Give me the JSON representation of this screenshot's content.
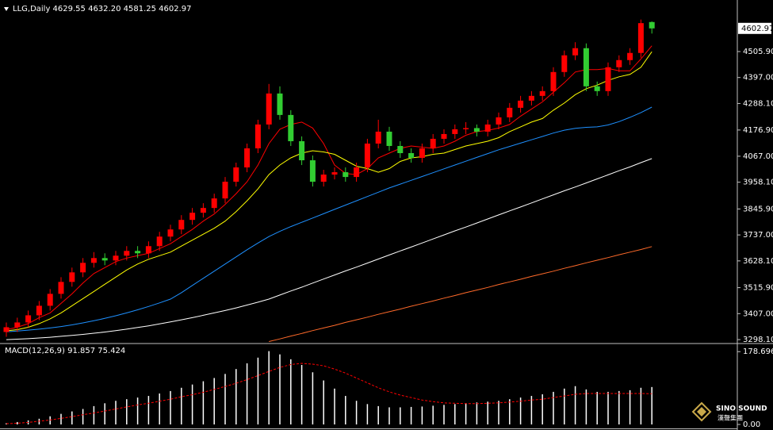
{
  "chart_data": [
    {
      "type": "candlestick",
      "title": "LLG,Daily 4629.55 4632.20 4581.25 4602.97",
      "up_color": "#ff0000",
      "down_color": "#32cd32",
      "open": [
        3330,
        3350,
        3370,
        3400,
        3440,
        3490,
        3540,
        3580,
        3620,
        3640,
        3630,
        3650,
        3670,
        3660,
        3690,
        3730,
        3760,
        3800,
        3830,
        3850,
        3890,
        3960,
        4020,
        4100,
        4200,
        4330,
        4240,
        4130,
        4050,
        3960,
        3990,
        4000,
        3980,
        4020,
        4120,
        4170,
        4110,
        4080,
        4060,
        4100,
        4140,
        4160,
        4180,
        4185,
        4170,
        4200,
        4230,
        4270,
        4300,
        4320,
        4340,
        4420,
        4490,
        4520,
        4360,
        4340,
        4440,
        4470,
        4500,
        4629.55
      ],
      "high": [
        3370,
        3390,
        3420,
        3460,
        3510,
        3560,
        3600,
        3640,
        3665,
        3660,
        3670,
        3690,
        3690,
        3710,
        3750,
        3780,
        3820,
        3850,
        3870,
        3910,
        3980,
        4040,
        4120,
        4220,
        4370,
        4360,
        4260,
        4150,
        4070,
        4010,
        4020,
        4020,
        4040,
        4140,
        4220,
        4190,
        4130,
        4100,
        4120,
        4160,
        4180,
        4200,
        4210,
        4200,
        4220,
        4250,
        4290,
        4320,
        4340,
        4360,
        4440,
        4510,
        4545,
        4540,
        4380,
        4460,
        4490,
        4520,
        4640,
        4632.2
      ],
      "low": [
        3310,
        3330,
        3350,
        3380,
        3420,
        3470,
        3520,
        3560,
        3600,
        3610,
        3610,
        3630,
        3640,
        3640,
        3670,
        3710,
        3740,
        3780,
        3810,
        3830,
        3870,
        3940,
        4000,
        4080,
        4180,
        4220,
        4110,
        4030,
        3940,
        3940,
        3970,
        3960,
        3960,
        4000,
        4100,
        4090,
        4060,
        4040,
        4040,
        4080,
        4120,
        4140,
        4160,
        4150,
        4150,
        4180,
        4210,
        4250,
        4280,
        4300,
        4320,
        4400,
        4470,
        4340,
        4320,
        4320,
        4420,
        4450,
        4480,
        4581.25
      ],
      "close": [
        3350,
        3370,
        3400,
        3440,
        3490,
        3540,
        3580,
        3620,
        3640,
        3630,
        3650,
        3670,
        3660,
        3690,
        3730,
        3760,
        3800,
        3830,
        3850,
        3890,
        3960,
        4020,
        4100,
        4200,
        4330,
        4240,
        4130,
        4050,
        3960,
        3990,
        4000,
        3980,
        4020,
        4120,
        4170,
        4110,
        4080,
        4060,
        4100,
        4140,
        4160,
        4180,
        4185,
        4170,
        4200,
        4230,
        4270,
        4300,
        4320,
        4340,
        4420,
        4490,
        4520,
        4360,
        4340,
        4440,
        4470,
        4500,
        4625,
        4602.97
      ],
      "series": [
        {
          "color": "#ff0000",
          "values": [
            3340,
            3350,
            3365,
            3390,
            3410,
            3450,
            3490,
            3535,
            3575,
            3600,
            3625,
            3640,
            3650,
            3660,
            3680,
            3700,
            3730,
            3760,
            3795,
            3825,
            3865,
            3910,
            3960,
            4030,
            4120,
            4180,
            4200,
            4210,
            4185,
            4120,
            4030,
            3995,
            3990,
            4015,
            4060,
            4080,
            4100,
            4110,
            4105,
            4100,
            4110,
            4130,
            4155,
            4170,
            4175,
            4185,
            4200,
            4235,
            4265,
            4295,
            4335,
            4375,
            4420,
            4430,
            4430,
            4435,
            4425,
            4425,
            4475,
            4530
          ]
        },
        {
          "color": "#ffff00",
          "values": [
            3335,
            3340,
            3350,
            3365,
            3385,
            3410,
            3440,
            3470,
            3500,
            3530,
            3560,
            3590,
            3615,
            3635,
            3650,
            3665,
            3690,
            3715,
            3740,
            3765,
            3795,
            3835,
            3880,
            3930,
            3990,
            4030,
            4060,
            4080,
            4090,
            4085,
            4075,
            4050,
            4025,
            4015,
            4000,
            4015,
            4045,
            4060,
            4065,
            4075,
            4080,
            4095,
            4110,
            4120,
            4130,
            4145,
            4170,
            4190,
            4210,
            4225,
            4260,
            4290,
            4325,
            4350,
            4365,
            4385,
            4400,
            4410,
            4440,
            4505
          ]
        },
        {
          "color": "#1e90ff",
          "values": [
            3331,
            3334,
            3338,
            3342,
            3347,
            3353,
            3360,
            3368,
            3377,
            3387,
            3398,
            3410,
            3423,
            3437,
            3452,
            3468,
            3495,
            3525,
            3555,
            3585,
            3615,
            3645,
            3675,
            3703,
            3730,
            3752,
            3772,
            3790,
            3808,
            3826,
            3844,
            3862,
            3880,
            3898,
            3916,
            3934,
            3950,
            3966,
            3982,
            3998,
            4014,
            4030,
            4046,
            4062,
            4078,
            4094,
            4108,
            4122,
            4136,
            4150,
            4164,
            4176,
            4184,
            4188,
            4190,
            4198,
            4212,
            4230,
            4250,
            4273
          ]
        },
        {
          "color": "#ffffff",
          "values": [
            3298,
            3300,
            3302,
            3305,
            3308,
            3312,
            3316,
            3320,
            3325,
            3330,
            3336,
            3342,
            3349,
            3356,
            3364,
            3372,
            3381,
            3390,
            3400,
            3410,
            3420,
            3431,
            3443,
            3455,
            3468,
            3485,
            3502,
            3518,
            3535,
            3552,
            3569,
            3586,
            3602,
            3619,
            3636,
            3653,
            3670,
            3686,
            3703,
            3720,
            3737,
            3754,
            3770,
            3787,
            3804,
            3821,
            3838,
            3854,
            3871,
            3888,
            3905,
            3922,
            3938,
            3955,
            3972,
            3989,
            4006,
            4022,
            4040,
            4057
          ]
        },
        {
          "color": "#ff6a2a",
          "values": [
            null,
            null,
            null,
            null,
            null,
            null,
            null,
            null,
            null,
            null,
            null,
            null,
            null,
            null,
            null,
            null,
            null,
            null,
            null,
            null,
            null,
            null,
            null,
            null,
            3290,
            3301,
            3313,
            3324,
            3336,
            3347,
            3358,
            3370,
            3381,
            3392,
            3404,
            3415,
            3426,
            3438,
            3449,
            3460,
            3472,
            3483,
            3495,
            3506,
            3517,
            3529,
            3540,
            3551,
            3563,
            3574,
            3585,
            3597,
            3608,
            3620,
            3631,
            3642,
            3654,
            3665,
            3676,
            3688
          ]
        }
      ],
      "ylim": [
        3285,
        4722
      ],
      "yticks": [
        {
          "value": 4505.9,
          "label": "4505.90"
        },
        {
          "value": 4397,
          "label": "4397.00"
        },
        {
          "value": 4288.1,
          "label": "4288.10"
        },
        {
          "value": 4176.9,
          "label": "4176.90"
        },
        {
          "value": 4067,
          "label": "4067.00"
        },
        {
          "value": 3958.1,
          "label": "3958.10"
        },
        {
          "value": 3845.9,
          "label": "3845.90"
        },
        {
          "value": 3737,
          "label": "3737.00"
        },
        {
          "value": 3628.1,
          "label": "3628.10"
        },
        {
          "value": 3515.9,
          "label": "3515.90"
        },
        {
          "value": 3407,
          "label": "3407.00"
        },
        {
          "value": 3298.1,
          "label": "3298.10"
        }
      ],
      "last_price": {
        "value": 4602.97,
        "label": "4602.97"
      }
    },
    {
      "type": "macd",
      "title": "MACD(12,26,9) 91.857 75.424",
      "series": [
        {
          "color": "#ffffff",
          "style": "bar",
          "values": [
            3,
            6,
            10,
            14,
            20,
            26,
            32,
            38,
            45,
            52,
            58,
            62,
            66,
            70,
            76,
            82,
            90,
            98,
            106,
            114,
            124,
            136,
            150,
            164,
            180,
            172,
            160,
            146,
            128,
            108,
            88,
            70,
            58,
            50,
            45,
            42,
            42,
            43,
            44,
            46,
            48,
            50,
            52,
            54,
            56,
            58,
            62,
            66,
            70,
            74,
            80,
            88,
            94,
            86,
            80,
            80,
            82,
            84,
            90,
            91.857
          ]
        },
        {
          "color": "#ff0000",
          "style": "dotted",
          "values": [
            2,
            3,
            5,
            8,
            11,
            15,
            19,
            24,
            28,
            33,
            38,
            43,
            48,
            52,
            57,
            62,
            68,
            73,
            79,
            86,
            93,
            101,
            110,
            120,
            130,
            140,
            147,
            150,
            148,
            144,
            136,
            126,
            114,
            102,
            90,
            80,
            72,
            66,
            60,
            56,
            53,
            52,
            51,
            51,
            52,
            53,
            55,
            57,
            60,
            62,
            66,
            70,
            74,
            76,
            76,
            76,
            76,
            76,
            76,
            75.424
          ]
        }
      ],
      "ylim": [
        0,
        185
      ],
      "yticks": [
        178.696,
        {
          "value": 0,
          "label": "0.00"
        }
      ]
    }
  ],
  "logo": {
    "name": "SINO SOUND",
    "subtitle": "漢聲集團"
  }
}
